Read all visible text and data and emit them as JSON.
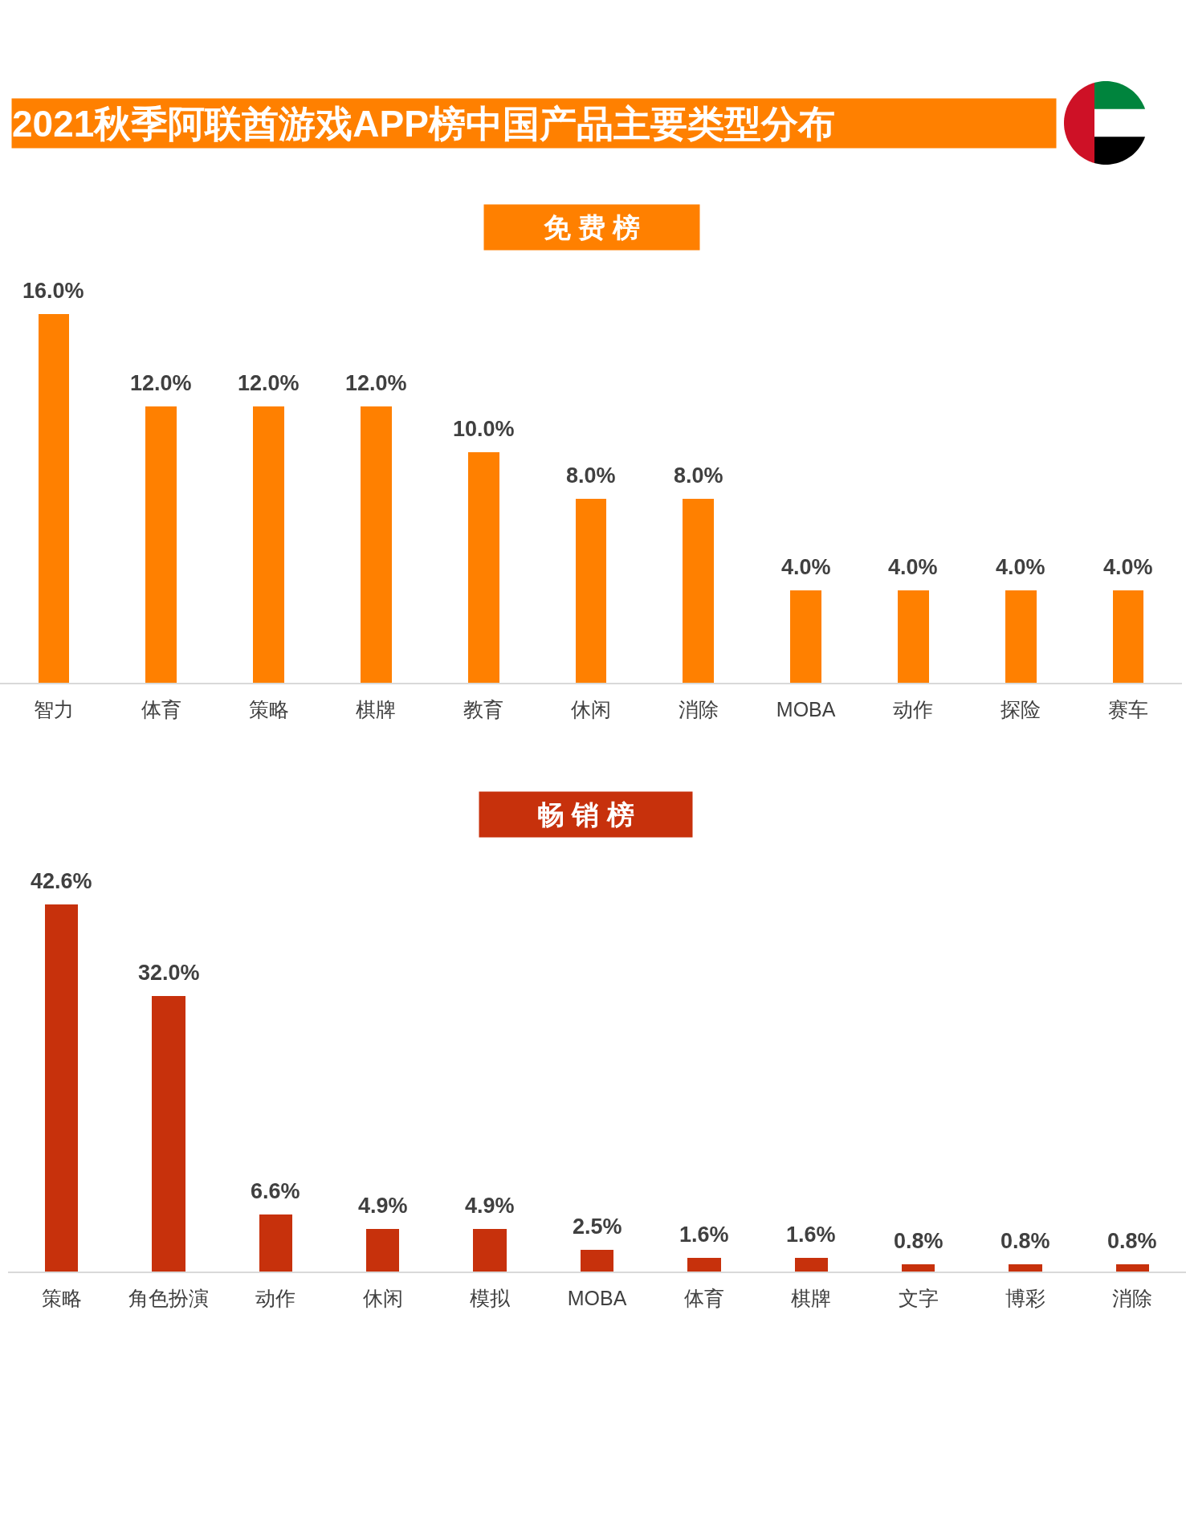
{
  "chart_data": [
    {
      "type": "bar",
      "title": "2021秋季阿联酋游戏APP榜中国产品主要类型分布",
      "subtitle": "免 费 榜",
      "categories": [
        "智力",
        "体育",
        "策略",
        "棋牌",
        "教育",
        "休闲",
        "消除",
        "MOBA",
        "动作",
        "探险",
        "赛车"
      ],
      "values": [
        16.0,
        12.0,
        12.0,
        12.0,
        10.0,
        8.0,
        8.0,
        4.0,
        4.0,
        4.0,
        4.0
      ],
      "value_labels": [
        "16.0%",
        "12.0%",
        "12.0%",
        "12.0%",
        "10.0%",
        "8.0%",
        "8.0%",
        "4.0%",
        "4.0%",
        "4.0%",
        "4.0%"
      ],
      "color": "#ff8000",
      "ylim": [
        0,
        16
      ],
      "tick_labels": "x"
    },
    {
      "type": "bar",
      "title": "畅 销 榜",
      "categories": [
        "策略",
        "角色扮演",
        "动作",
        "休闲",
        "模拟",
        "MOBA",
        "体育",
        "棋牌",
        "文字",
        "博彩",
        "消除"
      ],
      "values": [
        42.6,
        32.0,
        6.6,
        4.9,
        4.9,
        2.5,
        1.6,
        1.6,
        0.8,
        0.8,
        0.8
      ],
      "value_labels": [
        "42.6%",
        "32.0%",
        "6.6%",
        "4.9%",
        "4.9%",
        "2.5%",
        "1.6%",
        "1.6%",
        "0.8%",
        "0.8%",
        "0.8%"
      ],
      "color": "#c7310c",
      "ylim": [
        0,
        42.6
      ],
      "tick_labels": "x"
    }
  ]
}
